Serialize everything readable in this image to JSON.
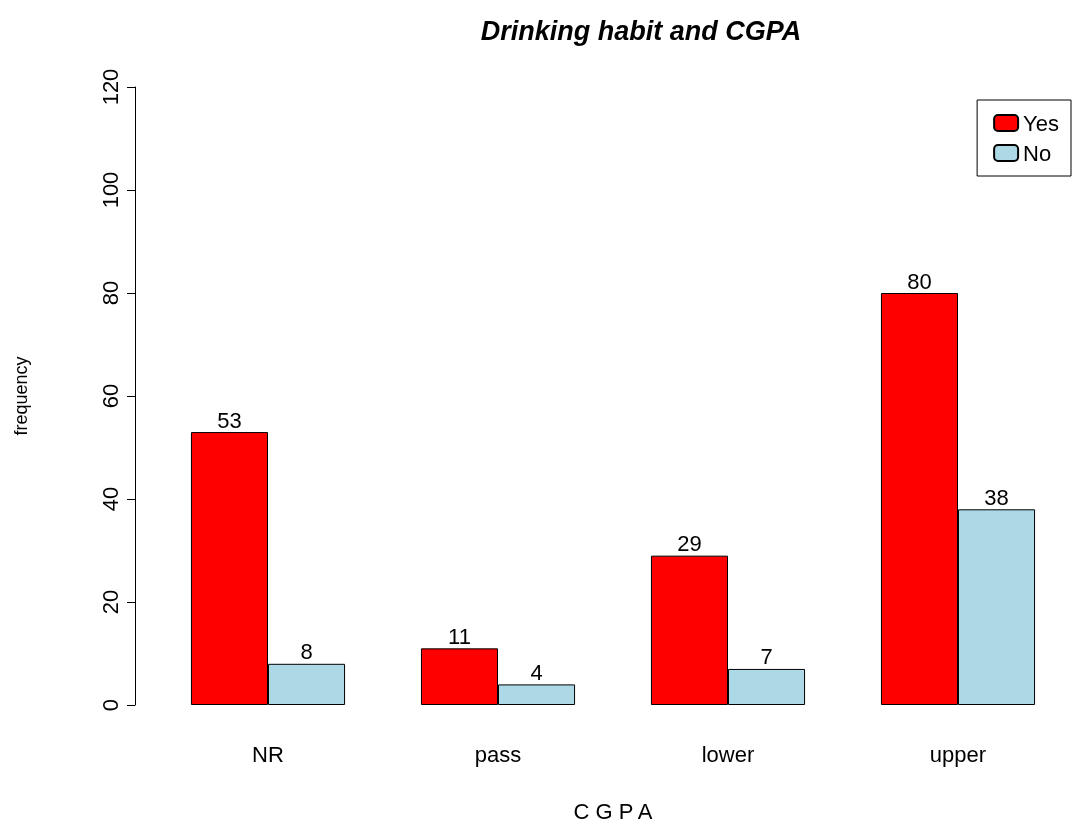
{
  "chart_data": {
    "type": "bar",
    "title": "Drinking habit and CGPA",
    "xlabel": "C G P A",
    "ylabel": "frequency",
    "categories": [
      "NR",
      "pass",
      "lower",
      "upper"
    ],
    "series": [
      {
        "name": "Yes",
        "color": "#ff0000",
        "values": [
          53,
          11,
          29,
          80
        ]
      },
      {
        "name": "No",
        "color": "#add8e6",
        "values": [
          8,
          4,
          7,
          38
        ]
      }
    ],
    "ylim": [
      0,
      120
    ],
    "yticks": [
      0,
      20,
      40,
      60,
      80,
      100,
      120
    ],
    "grid": false,
    "legend": "top right",
    "data_labels": true
  }
}
